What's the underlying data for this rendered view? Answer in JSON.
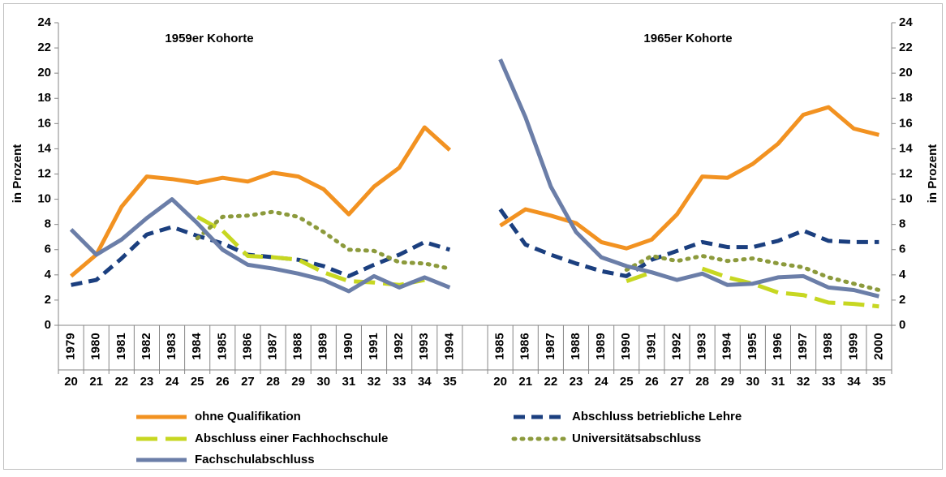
{
  "chart_data": {
    "type": "line",
    "annotations": [
      "1959er Kohorte",
      "1965er Kohorte"
    ],
    "y_label": "in Prozent",
    "y2_label": "in Prozent",
    "categories": [
      "1979",
      "1980",
      "1981",
      "1982",
      "1983",
      "1984",
      "1985",
      "1986",
      "1987",
      "1988",
      "1989",
      "1990",
      "1991",
      "1992",
      "1993",
      "1994",
      null,
      "1985",
      "1986",
      "1987",
      "1988",
      "1989",
      "1990",
      "1991",
      "1992",
      "1993",
      "1994",
      "1995",
      "1996",
      "1997",
      "1998",
      "1999",
      "2000"
    ],
    "age_categories": [
      "20",
      "21",
      "22",
      "23",
      "24",
      "25",
      "26",
      "27",
      "28",
      "29",
      "30",
      "31",
      "32",
      "33",
      "34",
      "35",
      null,
      "20",
      "21",
      "22",
      "23",
      "24",
      "25",
      "26",
      "27",
      "28",
      "29",
      "30",
      "31",
      "32",
      "33",
      "34",
      "35"
    ],
    "ylim": [
      0,
      24
    ],
    "yticks": [
      0,
      2,
      4,
      6,
      8,
      10,
      12,
      14,
      16,
      18,
      20,
      22,
      24
    ],
    "y2lim": [
      0,
      24
    ],
    "y2ticks": [
      0,
      2,
      4,
      6,
      8,
      10,
      12,
      14,
      16,
      18,
      20,
      22,
      24
    ],
    "grid": false,
    "series": [
      {
        "name": "ohne Qualifikation",
        "color": "#f29221",
        "style": "solid",
        "values": [
          3.9,
          5.6,
          9.4,
          11.8,
          11.6,
          11.3,
          11.7,
          11.4,
          12.1,
          11.8,
          10.8,
          8.8,
          11.0,
          12.5,
          15.7,
          13.9,
          null,
          7.9,
          9.2,
          8.7,
          8.1,
          6.6,
          6.1,
          6.8,
          8.8,
          11.8,
          11.7,
          12.8,
          14.4,
          16.7,
          17.3,
          15.6,
          15.1
        ]
      },
      {
        "name": "Abschluss betriebliche Lehre",
        "color": "#1b3f7f",
        "style": "dashed",
        "values": [
          3.2,
          3.6,
          5.3,
          7.2,
          7.8,
          7.1,
          6.5,
          5.6,
          5.4,
          5.2,
          4.7,
          3.9,
          4.8,
          5.6,
          6.6,
          6.0,
          null,
          9.2,
          6.4,
          5.6,
          4.9,
          4.3,
          3.9,
          5.2,
          5.9,
          6.6,
          6.2,
          6.2,
          6.7,
          7.5,
          6.7,
          6.6,
          6.6
        ]
      },
      {
        "name": "Abschluss einer Fachhochschule",
        "color": "#c7d721",
        "style": "longdash",
        "values": [
          null,
          null,
          null,
          null,
          null,
          8.6,
          7.5,
          5.5,
          5.4,
          5.2,
          4.2,
          3.5,
          3.4,
          3.2,
          3.6,
          null,
          null,
          null,
          null,
          null,
          null,
          null,
          3.5,
          4.2,
          null,
          4.5,
          3.8,
          3.3,
          2.6,
          2.4,
          1.8,
          1.7,
          1.5
        ]
      },
      {
        "name": "Universitätsabschluss",
        "color": "#8c9a3c",
        "style": "dotted",
        "values": [
          null,
          null,
          null,
          null,
          null,
          6.9,
          8.6,
          8.7,
          9.0,
          8.6,
          7.4,
          6.0,
          5.9,
          5.0,
          4.9,
          4.5,
          null,
          null,
          null,
          null,
          null,
          null,
          4.4,
          5.5,
          5.1,
          5.5,
          5.1,
          5.3,
          4.9,
          4.6,
          3.8,
          3.3,
          2.8
        ]
      },
      {
        "name": "Fachschulabschluss",
        "color": "#6b7ea8",
        "style": "solid",
        "values": [
          7.6,
          5.6,
          6.8,
          8.5,
          10.0,
          8.1,
          6.0,
          4.8,
          4.5,
          4.1,
          3.6,
          2.7,
          3.9,
          3.0,
          3.8,
          3.0,
          null,
          21.1,
          16.5,
          11.0,
          7.4,
          5.4,
          4.7,
          4.2,
          3.6,
          4.1,
          3.2,
          3.3,
          3.8,
          3.9,
          3.0,
          2.8,
          2.3
        ]
      }
    ]
  }
}
